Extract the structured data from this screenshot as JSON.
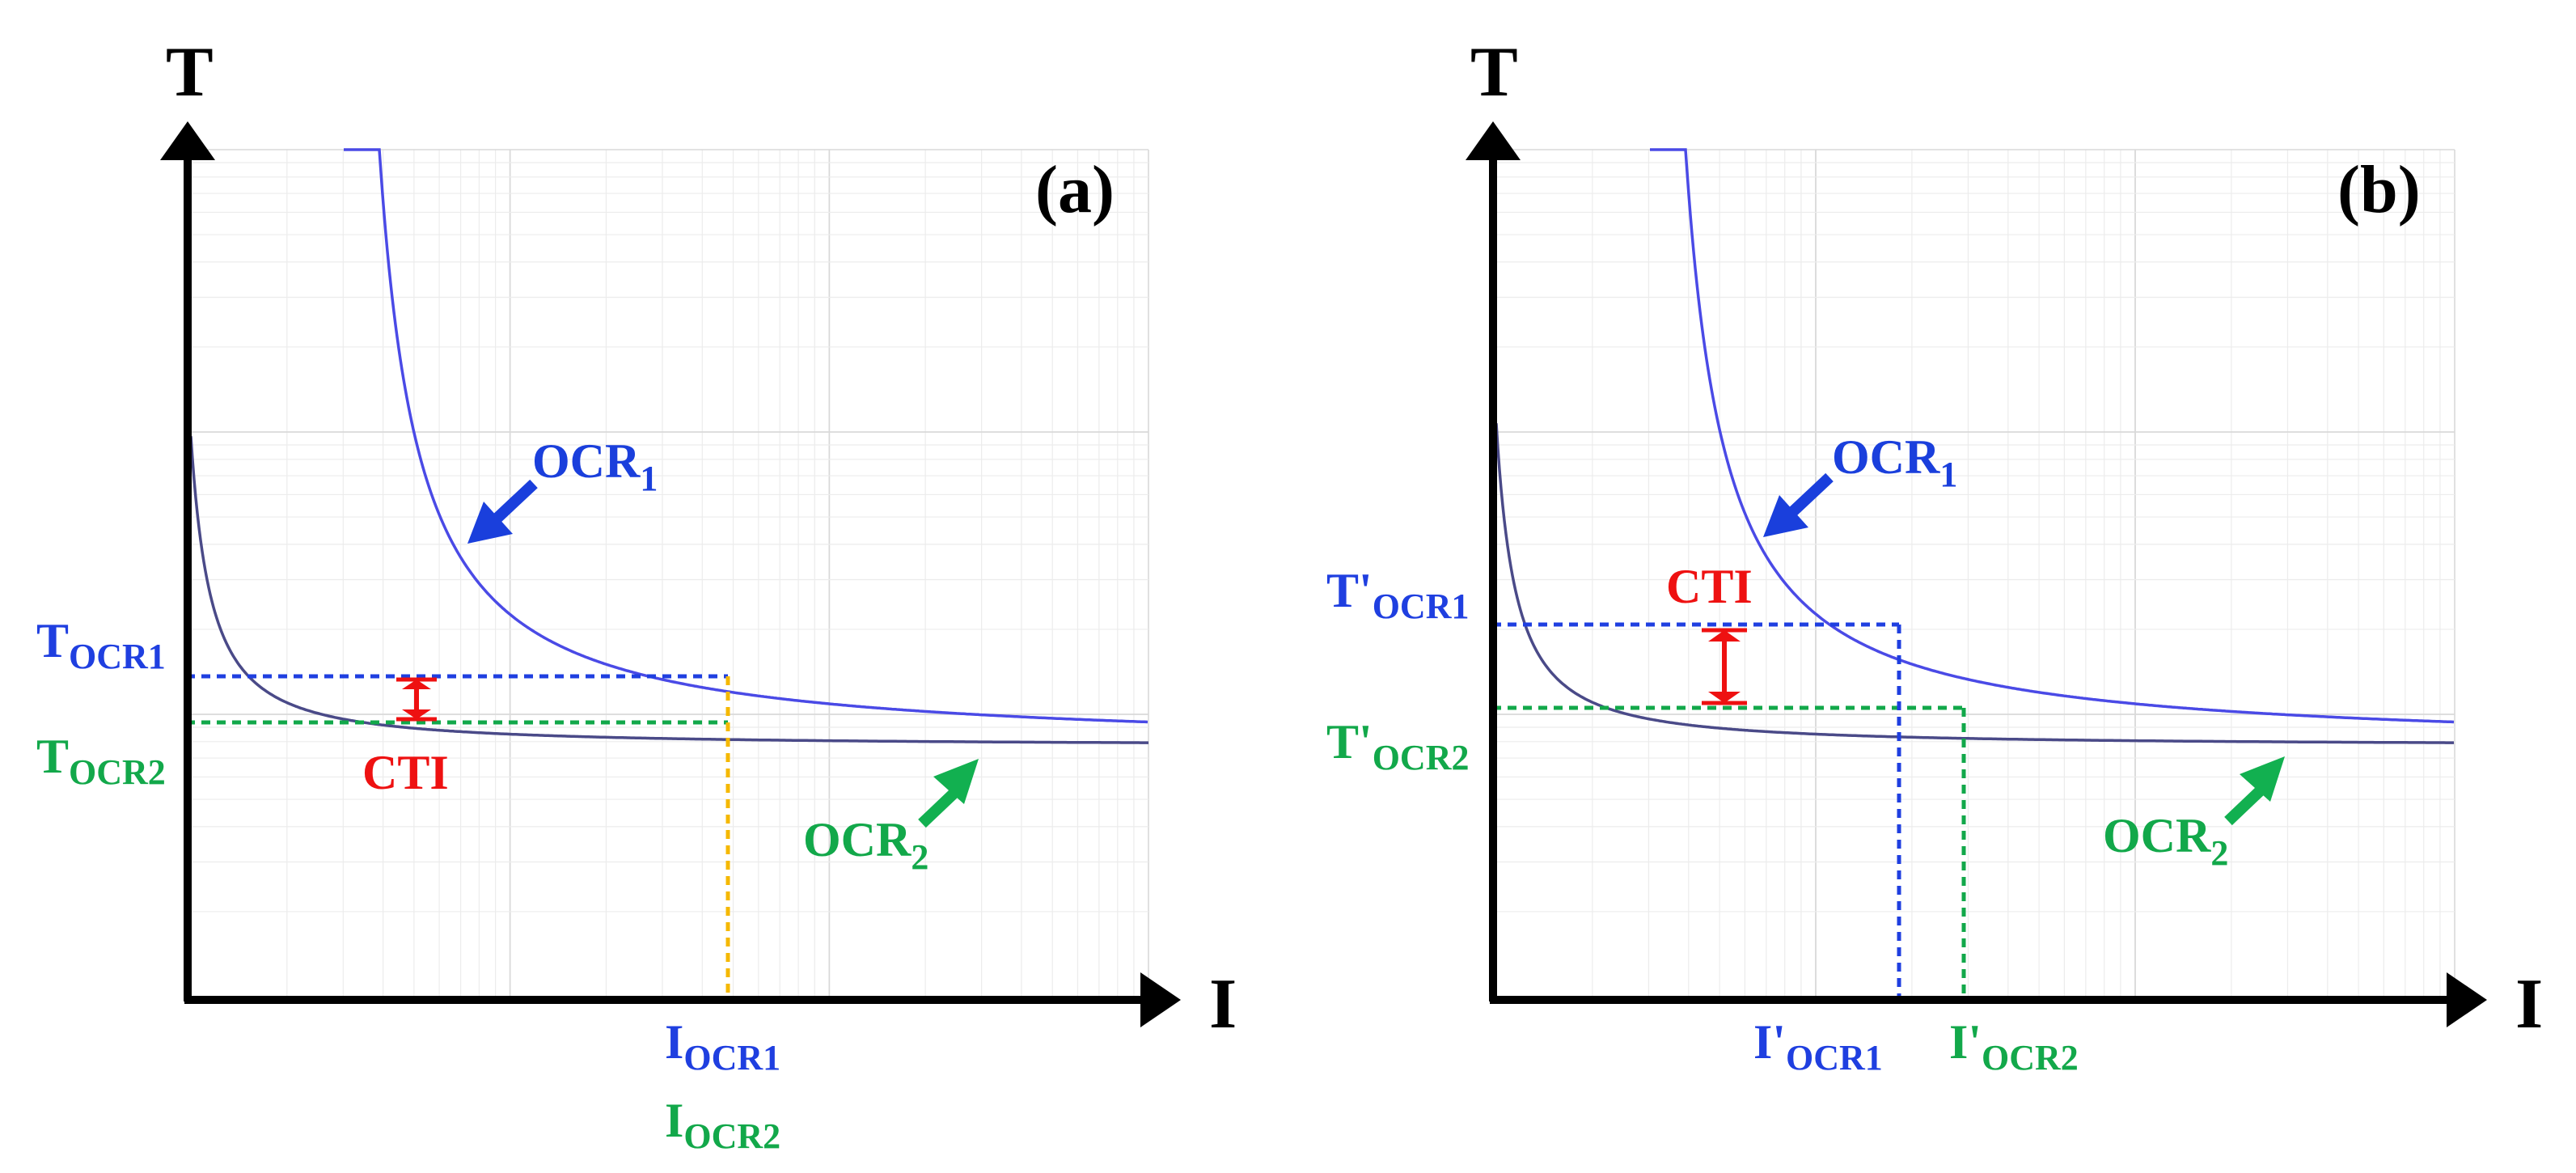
{
  "colors": {
    "blue": "#1f3fe0",
    "green": "#12a84a",
    "red": "#ee1111",
    "orange": "#f5b800",
    "curve_ocr1": "#4a4ae6",
    "curve_ocr2": "#4a4a88",
    "arrow_blue": "#1a3fdc",
    "arrow_green": "#12b050"
  },
  "panels": [
    {
      "id": "a",
      "tag": "(a)",
      "y_axis_letter": "T",
      "x_axis_letter": "I",
      "curve_1_name": "OCR",
      "curve_1_sub": "1",
      "curve_2_name": "OCR",
      "curve_2_sub": "2",
      "t1_main": "T",
      "t1_sub": "OCR1",
      "t2_main": "T",
      "t2_sub": "OCR2",
      "cti": "CTI",
      "i1_main": "I",
      "i1_sub": "OCR1",
      "i2_main": "I",
      "i2_sub": "OCR2"
    },
    {
      "id": "b",
      "tag": "(b)",
      "y_axis_letter": "T",
      "x_axis_letter": "I",
      "curve_1_name": "OCR",
      "curve_1_sub": "1",
      "curve_2_name": "OCR",
      "curve_2_sub": "2",
      "t1_main": "T'",
      "t1_sub": "OCR1",
      "t2_main": "T'",
      "t2_sub": "OCR2",
      "cti": "CTI",
      "i1_main": "I'",
      "i1_sub": "OCR1",
      "i2_main": "I'",
      "i2_sub": "OCR2"
    }
  ]
}
